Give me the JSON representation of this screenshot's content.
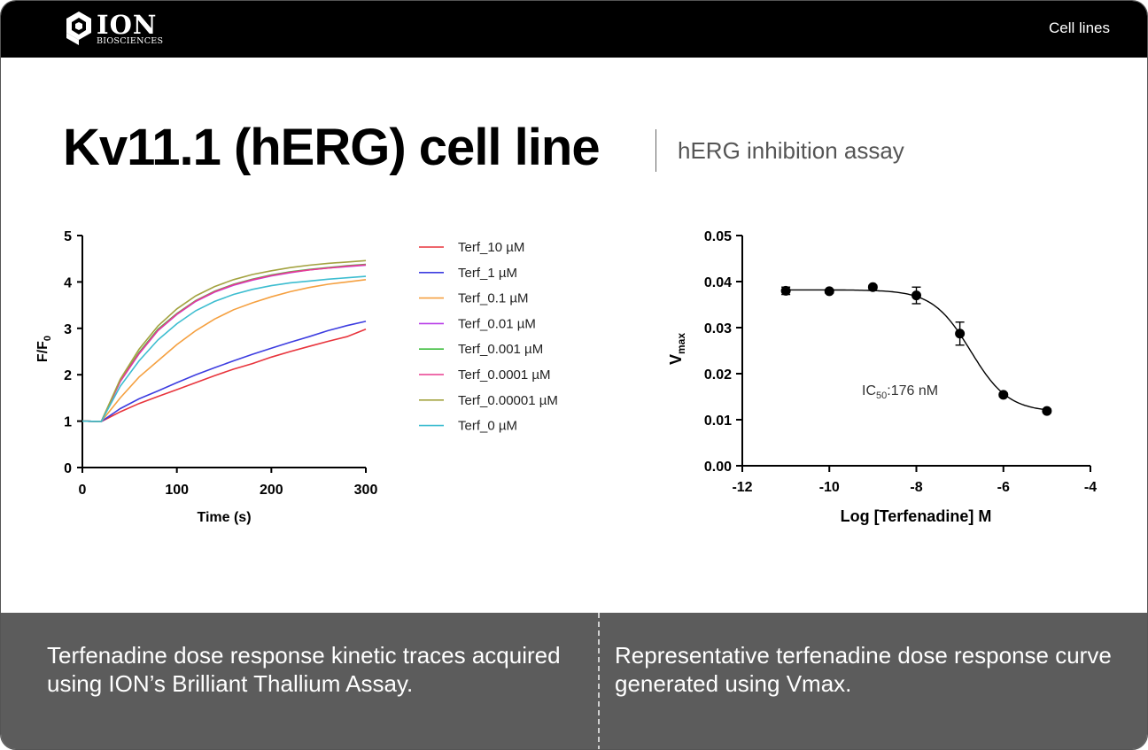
{
  "header": {
    "logo_text": "ION",
    "logo_subtext": "BIOSCIENCES",
    "nav_link": "Cell lines"
  },
  "page": {
    "title": "Kv11.1 (hERG) cell line",
    "subtitle": "hERG inhibition assay"
  },
  "footer": {
    "caption_left": "Terfenadine dose response kinetic traces acquired using ION’s Brilliant Thallium Assay.",
    "caption_right": "Representative terfenadine dose response curve generated using Vmax."
  },
  "chart_data": [
    {
      "type": "line",
      "xlabel": "Time (s)",
      "ylabel": "F/F0",
      "xlim": [
        0,
        300
      ],
      "ylim": [
        0,
        5
      ],
      "xticks": [
        0,
        100,
        200,
        300
      ],
      "yticks": [
        0,
        1,
        2,
        3,
        4,
        5
      ],
      "grid": false,
      "legend_position": "right",
      "x": [
        0,
        20,
        40,
        60,
        80,
        100,
        120,
        140,
        160,
        180,
        200,
        220,
        240,
        260,
        280,
        300
      ],
      "series": [
        {
          "name": "Terf_10 µM",
          "color": "#e8343c",
          "values": [
            1.0,
            0.99,
            1.2,
            1.38,
            1.53,
            1.68,
            1.83,
            1.98,
            2.12,
            2.24,
            2.38,
            2.5,
            2.61,
            2.72,
            2.82,
            2.98
          ]
        },
        {
          "name": "Terf_1 µM",
          "color": "#3d3de0",
          "values": [
            1.0,
            0.99,
            1.27,
            1.48,
            1.65,
            1.83,
            2.0,
            2.15,
            2.3,
            2.44,
            2.57,
            2.7,
            2.82,
            2.95,
            3.06,
            3.15
          ]
        },
        {
          "name": "Terf_0.1 µM",
          "color": "#f5a040",
          "values": [
            1.0,
            0.99,
            1.5,
            1.95,
            2.3,
            2.65,
            2.95,
            3.2,
            3.4,
            3.55,
            3.68,
            3.79,
            3.88,
            3.95,
            4.0,
            4.05
          ]
        },
        {
          "name": "Terf_0.01 µM",
          "color": "#b83de8",
          "values": [
            1.0,
            0.99,
            1.85,
            2.45,
            2.95,
            3.3,
            3.58,
            3.78,
            3.93,
            4.04,
            4.13,
            4.2,
            4.26,
            4.3,
            4.33,
            4.36
          ]
        },
        {
          "name": "Terf_0.001 µM",
          "color": "#3dbd3d",
          "values": [
            1.0,
            0.99,
            1.87,
            2.48,
            2.98,
            3.32,
            3.6,
            3.8,
            3.95,
            4.06,
            4.15,
            4.22,
            4.27,
            4.31,
            4.35,
            4.38
          ]
        },
        {
          "name": "Terf_0.0001 µM",
          "color": "#e83d8f",
          "values": [
            1.0,
            0.99,
            1.86,
            2.46,
            2.96,
            3.31,
            3.59,
            3.79,
            3.94,
            4.05,
            4.14,
            4.21,
            4.26,
            4.3,
            4.34,
            4.37
          ]
        },
        {
          "name": "Terf_0.00001 µM",
          "color": "#a3a340",
          "values": [
            1.0,
            0.99,
            1.9,
            2.55,
            3.05,
            3.42,
            3.7,
            3.9,
            4.05,
            4.16,
            4.24,
            4.31,
            4.36,
            4.4,
            4.43,
            4.46
          ]
        },
        {
          "name": "Terf_0 µM",
          "color": "#3dbdd0",
          "values": [
            1.0,
            0.99,
            1.75,
            2.3,
            2.75,
            3.1,
            3.38,
            3.58,
            3.73,
            3.84,
            3.92,
            3.98,
            4.02,
            4.06,
            4.09,
            4.12
          ]
        }
      ]
    },
    {
      "type": "scatter",
      "xlabel": "Log [Terfenadine] M",
      "ylabel": "Vmax",
      "xlim": [
        -12,
        -4
      ],
      "ylim": [
        0,
        0.05
      ],
      "xticks": [
        "-12",
        "-10",
        "-8",
        "-6",
        "-4"
      ],
      "yticks": [
        "0.00",
        "0.01",
        "0.02",
        "0.03",
        "0.04",
        "0.05"
      ],
      "grid": false,
      "annotation": "IC50:176 nM",
      "fit": {
        "top": 0.0382,
        "bottom": 0.0117,
        "logIC50": -6.754,
        "hill": 1.0,
        "color": "#000000"
      },
      "points": [
        {
          "x": -11,
          "y": 0.038,
          "err": 0.0008
        },
        {
          "x": -10,
          "y": 0.0379,
          "err": 0.0004
        },
        {
          "x": -9,
          "y": 0.0388,
          "err": 0.0004
        },
        {
          "x": -8,
          "y": 0.037,
          "err": 0.0018
        },
        {
          "x": -7,
          "y": 0.0287,
          "err": 0.0025
        },
        {
          "x": -6,
          "y": 0.0154,
          "err": 0.0004
        },
        {
          "x": -5,
          "y": 0.0119,
          "err": 0.0004
        }
      ]
    }
  ]
}
